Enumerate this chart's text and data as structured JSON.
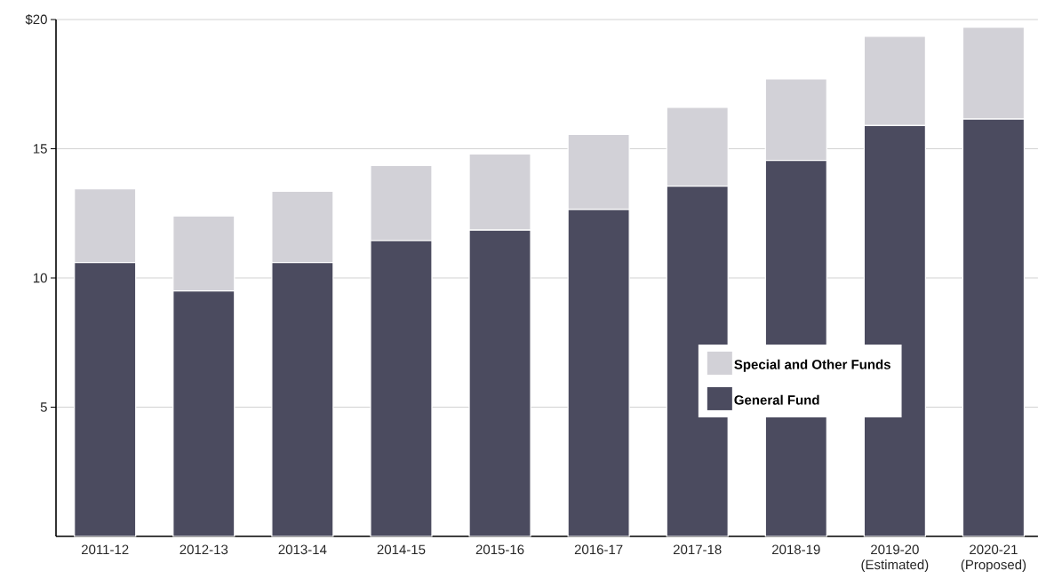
{
  "chart_data": {
    "type": "bar",
    "stacked": true,
    "categories": [
      "2011-12",
      "2012-13",
      "2013-14",
      "2014-15",
      "2015-16",
      "2016-17",
      "2017-18",
      "2018-19",
      "2019-20 (Estimated)",
      "2020-21 (Proposed)"
    ],
    "series": [
      {
        "name": "General Fund",
        "color": "#4b4b5f",
        "values": [
          10.6,
          9.5,
          10.6,
          11.45,
          11.85,
          12.65,
          13.55,
          14.55,
          15.9,
          16.15
        ]
      },
      {
        "name": "Special and Other Funds",
        "color": "#d2d1d7",
        "values": [
          2.85,
          2.9,
          2.75,
          2.9,
          2.95,
          2.9,
          3.05,
          3.15,
          3.45,
          3.55
        ]
      }
    ],
    "ylim": [
      0,
      20
    ],
    "yticks": [
      5,
      10,
      15,
      {
        "value": 20,
        "label": "$20"
      }
    ],
    "grid": "y",
    "legend": "right"
  }
}
